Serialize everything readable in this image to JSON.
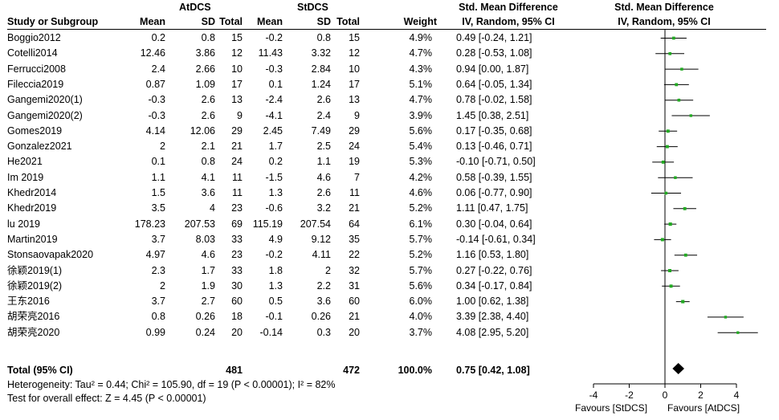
{
  "headers": {
    "group1": "AtDCS",
    "group2": "StDCS",
    "smd_title": "Std. Mean Difference",
    "smd_sub": "IV, Random, 95% CI",
    "plot_title": "Std. Mean Difference",
    "plot_sub": "IV, Random, 95% CI",
    "study": "Study or Subgroup",
    "mean1": "Mean",
    "sd1": "SD",
    "total1": "Total",
    "mean2": "Mean",
    "sd2": "SD",
    "total2": "Total",
    "weight": "Weight"
  },
  "studies": [
    {
      "name": "Boggio2012",
      "m1": "0.2",
      "sd1": "0.8",
      "n1": "15",
      "m2": "-0.2",
      "sd2": "0.8",
      "n2": "15",
      "w": "4.9%",
      "ci": "0.49 [-0.24, 1.21]"
    },
    {
      "name": "Cotelli2014",
      "m1": "12.46",
      "sd1": "3.86",
      "n1": "12",
      "m2": "11.43",
      "sd2": "3.32",
      "n2": "12",
      "w": "4.7%",
      "ci": "0.28 [-0.53, 1.08]"
    },
    {
      "name": "Ferrucci2008",
      "m1": "2.4",
      "sd1": "2.66",
      "n1": "10",
      "m2": "-0.3",
      "sd2": "2.84",
      "n2": "10",
      "w": "4.3%",
      "ci": "0.94 [0.00, 1.87]"
    },
    {
      "name": "Fileccia2019",
      "m1": "0.87",
      "sd1": "1.09",
      "n1": "17",
      "m2": "0.1",
      "sd2": "1.24",
      "n2": "17",
      "w": "5.1%",
      "ci": "0.64 [-0.05, 1.34]"
    },
    {
      "name": "Gangemi2020(1)",
      "m1": "-0.3",
      "sd1": "2.6",
      "n1": "13",
      "m2": "-2.4",
      "sd2": "2.6",
      "n2": "13",
      "w": "4.7%",
      "ci": "0.78 [-0.02, 1.58]"
    },
    {
      "name": "Gangemi2020(2)",
      "m1": "-0.3",
      "sd1": "2.6",
      "n1": "9",
      "m2": "-4.1",
      "sd2": "2.4",
      "n2": "9",
      "w": "3.9%",
      "ci": "1.45 [0.38, 2.51]"
    },
    {
      "name": "Gomes2019",
      "m1": "4.14",
      "sd1": "12.06",
      "n1": "29",
      "m2": "2.45",
      "sd2": "7.49",
      "n2": "29",
      "w": "5.6%",
      "ci": "0.17 [-0.35, 0.68]"
    },
    {
      "name": "Gonzalez2021",
      "m1": "2",
      "sd1": "2.1",
      "n1": "21",
      "m2": "1.7",
      "sd2": "2.5",
      "n2": "24",
      "w": "5.4%",
      "ci": "0.13 [-0.46, 0.71]"
    },
    {
      "name": "He2021",
      "m1": "0.1",
      "sd1": "0.8",
      "n1": "24",
      "m2": "0.2",
      "sd2": "1.1",
      "n2": "19",
      "w": "5.3%",
      "ci": "-0.10 [-0.71, 0.50]"
    },
    {
      "name": "Im 2019",
      "m1": "1.1",
      "sd1": "4.1",
      "n1": "11",
      "m2": "-1.5",
      "sd2": "4.6",
      "n2": "7",
      "w": "4.2%",
      "ci": "0.58 [-0.39, 1.55]"
    },
    {
      "name": "Khedr2014",
      "m1": "1.5",
      "sd1": "3.6",
      "n1": "11",
      "m2": "1.3",
      "sd2": "2.6",
      "n2": "11",
      "w": "4.6%",
      "ci": "0.06 [-0.77, 0.90]"
    },
    {
      "name": "Khedr2019",
      "m1": "3.5",
      "sd1": "4",
      "n1": "23",
      "m2": "-0.6",
      "sd2": "3.2",
      "n2": "21",
      "w": "5.2%",
      "ci": "1.11 [0.47, 1.75]"
    },
    {
      "name": "lu 2019",
      "m1": "178.23",
      "sd1": "207.53",
      "n1": "69",
      "m2": "115.19",
      "sd2": "207.54",
      "n2": "64",
      "w": "6.1%",
      "ci": "0.30 [-0.04, 0.64]"
    },
    {
      "name": "Martin2019",
      "m1": "3.7",
      "sd1": "8.03",
      "n1": "33",
      "m2": "4.9",
      "sd2": "9.12",
      "n2": "35",
      "w": "5.7%",
      "ci": "-0.14 [-0.61, 0.34]"
    },
    {
      "name": "Stonsaovapak2020",
      "m1": "4.97",
      "sd1": "4.6",
      "n1": "23",
      "m2": "-0.2",
      "sd2": "4.11",
      "n2": "22",
      "w": "5.2%",
      "ci": "1.16 [0.53, 1.80]"
    },
    {
      "name": "徐颖2019(1)",
      "m1": "2.3",
      "sd1": "1.7",
      "n1": "33",
      "m2": "1.8",
      "sd2": "2",
      "n2": "32",
      "w": "5.7%",
      "ci": "0.27 [-0.22, 0.76]"
    },
    {
      "name": "徐颖2019(2)",
      "m1": "2",
      "sd1": "1.9",
      "n1": "30",
      "m2": "1.3",
      "sd2": "2.2",
      "n2": "31",
      "w": "5.6%",
      "ci": "0.34 [-0.17, 0.84]"
    },
    {
      "name": "王东2016",
      "m1": "3.7",
      "sd1": "2.7",
      "n1": "60",
      "m2": "0.5",
      "sd2": "3.6",
      "n2": "60",
      "w": "6.0%",
      "ci": "1.00 [0.62, 1.38]"
    },
    {
      "name": "胡荣亮2016",
      "m1": "0.8",
      "sd1": "0.26",
      "n1": "18",
      "m2": "-0.1",
      "sd2": "0.26",
      "n2": "21",
      "w": "4.0%",
      "ci": "3.39 [2.38, 4.40]"
    },
    {
      "name": "胡荣亮2020",
      "m1": "0.99",
      "sd1": "0.24",
      "n1": "20",
      "m2": "-0.14",
      "sd2": "0.3",
      "n2": "20",
      "w": "3.7%",
      "ci": "4.08 [2.95, 5.20]"
    }
  ],
  "total": {
    "label": "Total (95% CI)",
    "n1": "481",
    "n2": "472",
    "w": "100.0%",
    "ci": "0.75 [0.42, 1.08]"
  },
  "footer": {
    "heterogeneity": "Heterogeneity: Tau² = 0.44; Chi² = 105.90, df = 19 (P < 0.00001); I² = 82%",
    "overall": "Test for overall effect: Z = 4.45 (P < 0.00001)"
  },
  "axis": {
    "favours_left": "Favours [StDCS]",
    "favours_right": "Favours [AtDCS]"
  },
  "colors": {
    "marker": "#22aa22",
    "diamond": "#000000"
  },
  "chart_data": {
    "type": "scatter",
    "subtype": "forest_plot",
    "title": "Std. Mean Difference",
    "xlabel": "IV, Random, 95% CI",
    "xlim": [
      -4,
      4
    ],
    "xticks": [
      "-4",
      "-2",
      "0",
      "2",
      "4"
    ],
    "null_line": 0,
    "points": [
      {
        "study": "Boggio2012",
        "est": 0.49,
        "lo": -0.24,
        "hi": 1.21,
        "weight": 4.9
      },
      {
        "study": "Cotelli2014",
        "est": 0.28,
        "lo": -0.53,
        "hi": 1.08,
        "weight": 4.7
      },
      {
        "study": "Ferrucci2008",
        "est": 0.94,
        "lo": 0.0,
        "hi": 1.87,
        "weight": 4.3
      },
      {
        "study": "Fileccia2019",
        "est": 0.64,
        "lo": -0.05,
        "hi": 1.34,
        "weight": 5.1
      },
      {
        "study": "Gangemi2020(1)",
        "est": 0.78,
        "lo": -0.02,
        "hi": 1.58,
        "weight": 4.7
      },
      {
        "study": "Gangemi2020(2)",
        "est": 1.45,
        "lo": 0.38,
        "hi": 2.51,
        "weight": 3.9
      },
      {
        "study": "Gomes2019",
        "est": 0.17,
        "lo": -0.35,
        "hi": 0.68,
        "weight": 5.6
      },
      {
        "study": "Gonzalez2021",
        "est": 0.13,
        "lo": -0.46,
        "hi": 0.71,
        "weight": 5.4
      },
      {
        "study": "He2021",
        "est": -0.1,
        "lo": -0.71,
        "hi": 0.5,
        "weight": 5.3
      },
      {
        "study": "Im 2019",
        "est": 0.58,
        "lo": -0.39,
        "hi": 1.55,
        "weight": 4.2
      },
      {
        "study": "Khedr2014",
        "est": 0.06,
        "lo": -0.77,
        "hi": 0.9,
        "weight": 4.6
      },
      {
        "study": "Khedr2019",
        "est": 1.11,
        "lo": 0.47,
        "hi": 1.75,
        "weight": 5.2
      },
      {
        "study": "lu 2019",
        "est": 0.3,
        "lo": -0.04,
        "hi": 0.64,
        "weight": 6.1
      },
      {
        "study": "Martin2019",
        "est": -0.14,
        "lo": -0.61,
        "hi": 0.34,
        "weight": 5.7
      },
      {
        "study": "Stonsaovapak2020",
        "est": 1.16,
        "lo": 0.53,
        "hi": 1.8,
        "weight": 5.2
      },
      {
        "study": "徐颖2019(1)",
        "est": 0.27,
        "lo": -0.22,
        "hi": 0.76,
        "weight": 5.7
      },
      {
        "study": "徐颖2019(2)",
        "est": 0.34,
        "lo": -0.17,
        "hi": 0.84,
        "weight": 5.6
      },
      {
        "study": "王东2016",
        "est": 1.0,
        "lo": 0.62,
        "hi": 1.38,
        "weight": 6.0
      },
      {
        "study": "胡荣亮2016",
        "est": 3.39,
        "lo": 2.38,
        "hi": 4.4,
        "weight": 4.0
      },
      {
        "study": "胡荣亮2020",
        "est": 4.08,
        "lo": 2.95,
        "hi": 5.2,
        "weight": 3.7
      }
    ],
    "pooled": {
      "est": 0.75,
      "lo": 0.42,
      "hi": 1.08
    }
  }
}
